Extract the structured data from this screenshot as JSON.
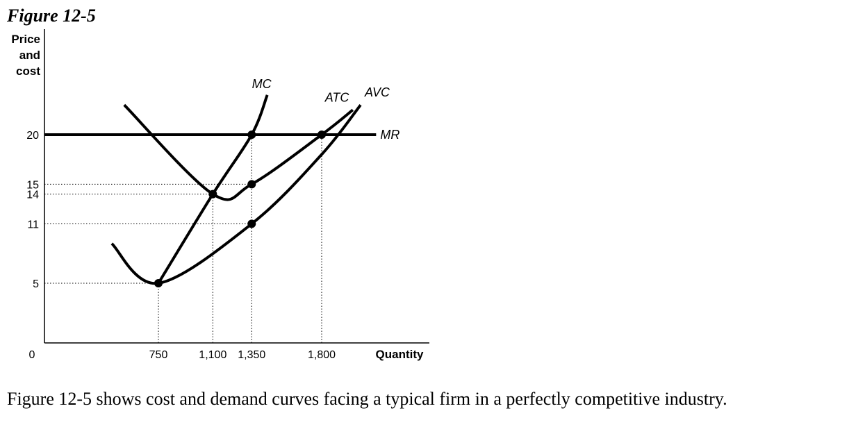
{
  "figure_title": "Figure 12-5",
  "caption": "Figure 12-5 shows cost and demand curves facing a typical firm in a perfectly competitive industry.",
  "chart_data": {
    "type": "line",
    "ylabel": [
      "Price",
      "and",
      "cost"
    ],
    "xlabel": "Quantity",
    "origin_label": "0",
    "x_ticks": [
      {
        "value": 750,
        "label": "750"
      },
      {
        "value": 1100,
        "label": "1,100"
      },
      {
        "value": 1350,
        "label": "1,350"
      },
      {
        "value": 1800,
        "label": "1,800"
      }
    ],
    "y_ticks": [
      {
        "value": 5,
        "label": "5"
      },
      {
        "value": 11,
        "label": "11"
      },
      {
        "value": 14,
        "label": "14"
      },
      {
        "value": 15,
        "label": "15"
      },
      {
        "value": 20,
        "label": "20"
      }
    ],
    "series": [
      {
        "name": "MC",
        "points": [
          [
            750,
            5
          ],
          [
            1100,
            14
          ],
          [
            1350,
            20
          ],
          [
            1450,
            24
          ]
        ]
      },
      {
        "name": "ATC",
        "points": [
          [
            530,
            23
          ],
          [
            1100,
            14
          ],
          [
            1350,
            15
          ],
          [
            1800,
            20
          ],
          [
            2000,
            22.5
          ]
        ]
      },
      {
        "name": "AVC",
        "points": [
          [
            450,
            9
          ],
          [
            750,
            5
          ],
          [
            1350,
            11
          ],
          [
            1800,
            18
          ],
          [
            2050,
            23
          ]
        ]
      },
      {
        "name": "MR",
        "points": [
          [
            0,
            20
          ],
          [
            2150,
            20
          ]
        ]
      }
    ],
    "marked_points": [
      [
        750,
        5
      ],
      [
        1100,
        14
      ],
      [
        1350,
        20
      ],
      [
        1350,
        15
      ],
      [
        1350,
        11
      ],
      [
        1800,
        20
      ]
    ],
    "guides": [
      {
        "from": [
          0,
          15
        ],
        "to": [
          1350,
          15
        ]
      },
      {
        "from": [
          0,
          14
        ],
        "to": [
          1100,
          14
        ]
      },
      {
        "from": [
          0,
          11
        ],
        "to": [
          1350,
          11
        ]
      },
      {
        "from": [
          0,
          5
        ],
        "to": [
          750,
          5
        ]
      },
      {
        "from": [
          750,
          0
        ],
        "to": [
          750,
          5
        ]
      },
      {
        "from": [
          1100,
          0
        ],
        "to": [
          1100,
          14
        ]
      },
      {
        "from": [
          1350,
          0
        ],
        "to": [
          1350,
          20
        ]
      },
      {
        "from": [
          1800,
          0
        ],
        "to": [
          1800,
          20
        ]
      }
    ]
  }
}
